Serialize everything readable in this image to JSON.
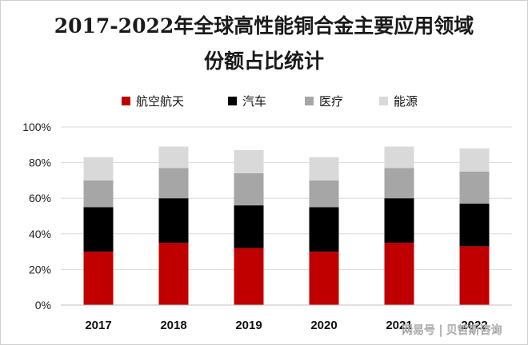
{
  "title_line1": "2017-2022年全球高性能铜合金主要应用领域",
  "title_line2": "份额占比统计",
  "watermark": "网易号 | 贝哲斯咨询",
  "colors": {
    "航空航天": "#c00000",
    "汽车": "#000000",
    "医疗": "#a6a6a6",
    "能源": "#d9d9d9",
    "grid": "#d9d9d9",
    "axis": "#bfbfbf"
  },
  "chart_data": {
    "type": "bar",
    "stacked": true,
    "categories": [
      "2017",
      "2018",
      "2019",
      "2020",
      "2021",
      "2022"
    ],
    "series": [
      {
        "name": "航空航天",
        "values": [
          30,
          35,
          32,
          30,
          35,
          33
        ]
      },
      {
        "name": "汽车",
        "values": [
          25,
          25,
          24,
          25,
          25,
          24
        ]
      },
      {
        "name": "医疗",
        "values": [
          15,
          17,
          18,
          15,
          17,
          18
        ]
      },
      {
        "name": "能源",
        "values": [
          13,
          12,
          13,
          13,
          12,
          13
        ]
      }
    ],
    "ylim": [
      0,
      100
    ],
    "yticks": [
      "0%",
      "20%",
      "40%",
      "60%",
      "80%",
      "100%"
    ],
    "legend_position": "top",
    "grid": true
  }
}
